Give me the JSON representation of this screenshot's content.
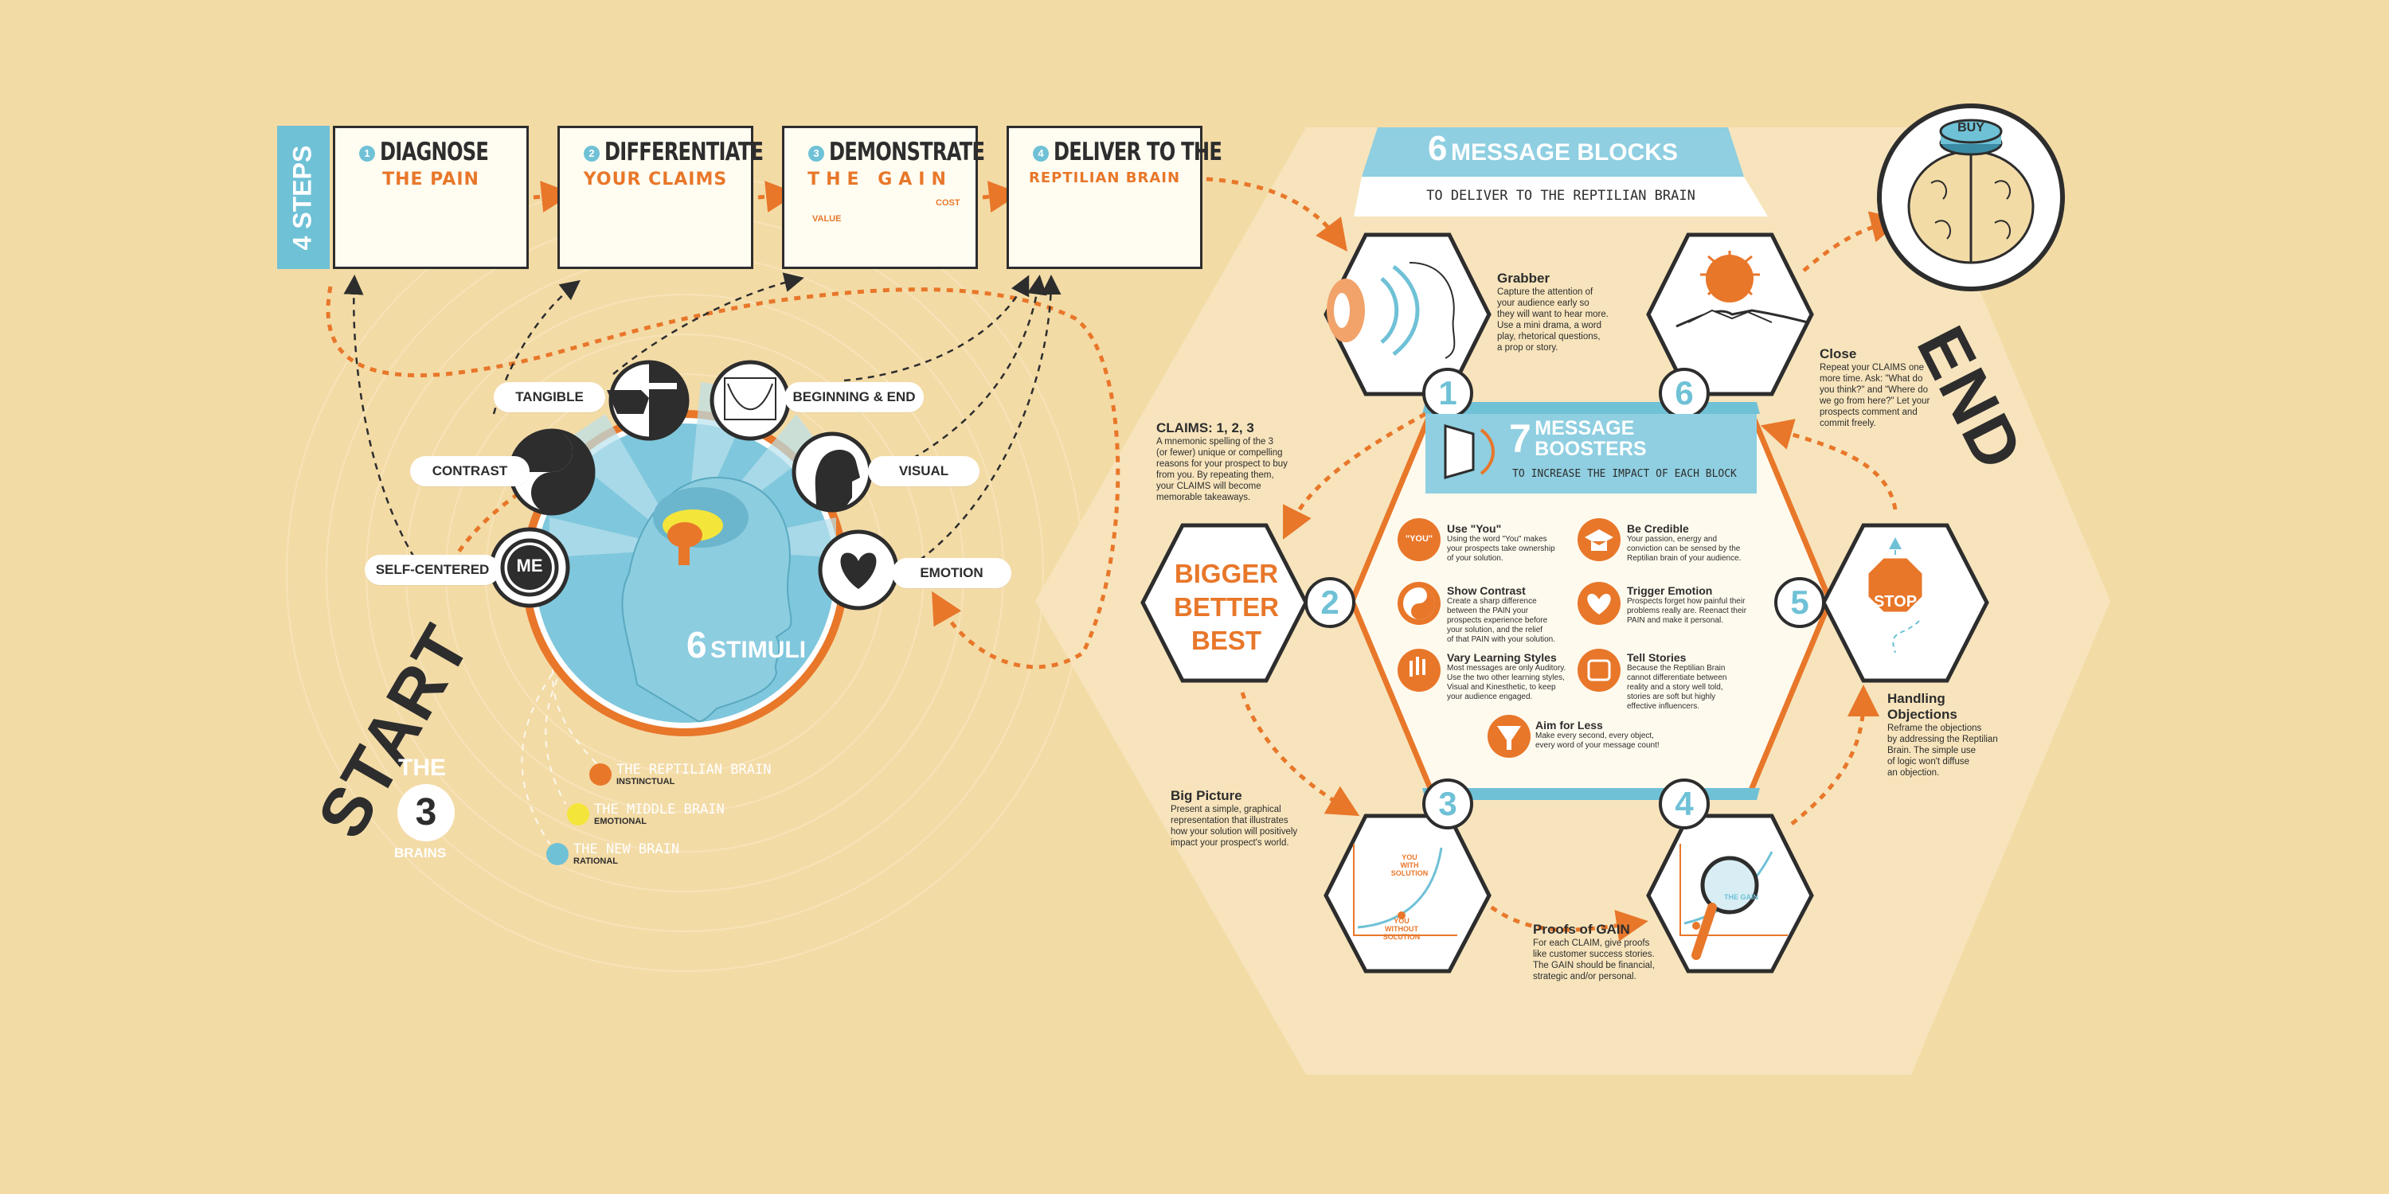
{
  "colors": {
    "background": "#f3dba6",
    "orange": "#e8772a",
    "blue": "#6fc1d6",
    "dark": "#2d2d2d",
    "yellow": "#f4e53b"
  },
  "steps": {
    "side_label": "4 STEPS",
    "items": [
      {
        "num": "1",
        "line1": "DIAGNOSE",
        "line2": "THE PAIN"
      },
      {
        "num": "2",
        "line1": "DIFFERENTIATE",
        "line2": "YOUR CLAIMS"
      },
      {
        "num": "3",
        "line1": "DEMONSTRATE",
        "line2": "THE GAIN",
        "value_label": "VALUE",
        "cost_label": "COST"
      },
      {
        "num": "4",
        "line1": "DELIVER TO THE",
        "line2": "REPTILIAN BRAIN"
      }
    ]
  },
  "stimuli": {
    "title_num": "6",
    "title": "STIMULI",
    "items": [
      {
        "label": "TANGIBLE",
        "icon": "pointing-hand-icon"
      },
      {
        "label": "BEGINNING & END",
        "icon": "u-curve-graph-icon"
      },
      {
        "label": "CONTRAST",
        "icon": "yin-yang-icon"
      },
      {
        "label": "VISUAL",
        "icon": "head-eye-icon"
      },
      {
        "label": "SELF-CENTERED",
        "icon": "me-mirror-icon"
      },
      {
        "label": "EMOTION",
        "icon": "heart-icon"
      }
    ]
  },
  "start_label": "START",
  "three_brains": {
    "the": "THE",
    "num": "3",
    "brains": "BRAINS",
    "items": [
      {
        "name": "THE REPTILIAN BRAIN",
        "sub": "INSTINCTUAL",
        "color": "#e8772a"
      },
      {
        "name": "THE MIDDLE BRAIN",
        "sub": "EMOTIONAL",
        "color": "#f4e53b"
      },
      {
        "name": "THE NEW BRAIN",
        "sub": "RATIONAL",
        "color": "#6fc1d6"
      }
    ]
  },
  "message_blocks": {
    "num": "6",
    "title": "MESSAGE BLOCKS",
    "subtitle": "TO DELIVER TO THE REPTILIAN BRAIN"
  },
  "blocks": [
    {
      "num": "1",
      "title": "Grabber",
      "text": [
        "Capture the attention of",
        "your audience early so",
        "they will want to hear more.",
        "Use a mini drama, a word",
        "play, rhetorical questions,",
        "a prop or story."
      ]
    },
    {
      "num": "2",
      "title": "CLAIMS: 1, 2, 3",
      "text": [
        "A mnemonic spelling of the 3",
        "(or fewer) unique or compelling",
        "reasons for your prospect to buy",
        "from you. By repeating them,",
        "your CLAIMS will become",
        "memorable takeaways."
      ],
      "hex_text": [
        "BIGGER",
        "BETTER",
        "BEST"
      ]
    },
    {
      "num": "3",
      "title": "Big Picture",
      "text": [
        "Present a simple, graphical",
        "representation that illustrates",
        "how your solution will positively",
        "impact your prospect's world."
      ],
      "with_label": [
        "YOU",
        "WITH",
        "SOLUTION"
      ],
      "without_label": [
        "YOU",
        "WITHOUT",
        "SOLUTION"
      ]
    },
    {
      "num": "4",
      "title": "Proofs of GAIN",
      "text": [
        "For each CLAIM, give proofs",
        "like customer success stories.",
        "The GAIN should be financial,",
        "strategic and/or personal."
      ],
      "gain_label": "THE GAIN"
    },
    {
      "num": "5",
      "title": "Handling Objections",
      "text": [
        "Reframe the objections",
        "by addressing the Reptilian",
        "Brain. The simple use",
        "of logic won't diffuse",
        "an objection."
      ],
      "sign": "STOP"
    },
    {
      "num": "6",
      "title": "Close",
      "text": [
        "Repeat your CLAIMS one",
        "more time. Ask: \"What do",
        "you think?\" and \"Where do",
        "we go from here?\" Let your",
        "prospects comment and",
        "commit freely."
      ]
    }
  ],
  "boosters": {
    "num": "7",
    "title_line1": "MESSAGE",
    "title_line2": "BOOSTERS",
    "subtitle": "TO INCREASE THE IMPACT OF EACH BLOCK",
    "items": [
      {
        "title": "Use \"You\"",
        "icon": "you-bubble-icon",
        "badge": "\"YOU\"",
        "text": [
          "Using the word \"You\" makes",
          "your prospects take ownership",
          "of your solution."
        ]
      },
      {
        "title": "Be Credible",
        "icon": "graduation-cap-icon",
        "text": [
          "Your passion, energy and",
          "conviction can be sensed by the",
          "Reptilian brain of your audience."
        ]
      },
      {
        "title": "Show Contrast",
        "icon": "yin-yang-icon",
        "text": [
          "Create a sharp difference",
          "between the PAIN your",
          "prospects experience before",
          "your solution, and the relief",
          "of that PAIN with your solution."
        ]
      },
      {
        "title": "Trigger Emotion",
        "icon": "heart-icon",
        "text": [
          "Prospects forget how painful their",
          "problems really are. Reenact their",
          "PAIN and make it personal."
        ]
      },
      {
        "title": "Vary Learning Styles",
        "icon": "hands-icon",
        "text": [
          "Most messages are only Auditory.",
          "Use the two other learning styles,",
          "Visual and Kinesthetic, to keep",
          "your audience engaged."
        ]
      },
      {
        "title": "Tell Stories",
        "icon": "scroll-icon",
        "text": [
          "Because the Reptilian Brain",
          "cannot differentiate between",
          "reality and a story well told,",
          "stories are soft but highly",
          "effective influencers."
        ]
      },
      {
        "title": "Aim for Less",
        "icon": "funnel-icon",
        "text": [
          "Make every second, every object,",
          "every word of your message count!"
        ]
      }
    ]
  },
  "buy_label": "BUY",
  "end_label": "END",
  "me_label": "ME"
}
